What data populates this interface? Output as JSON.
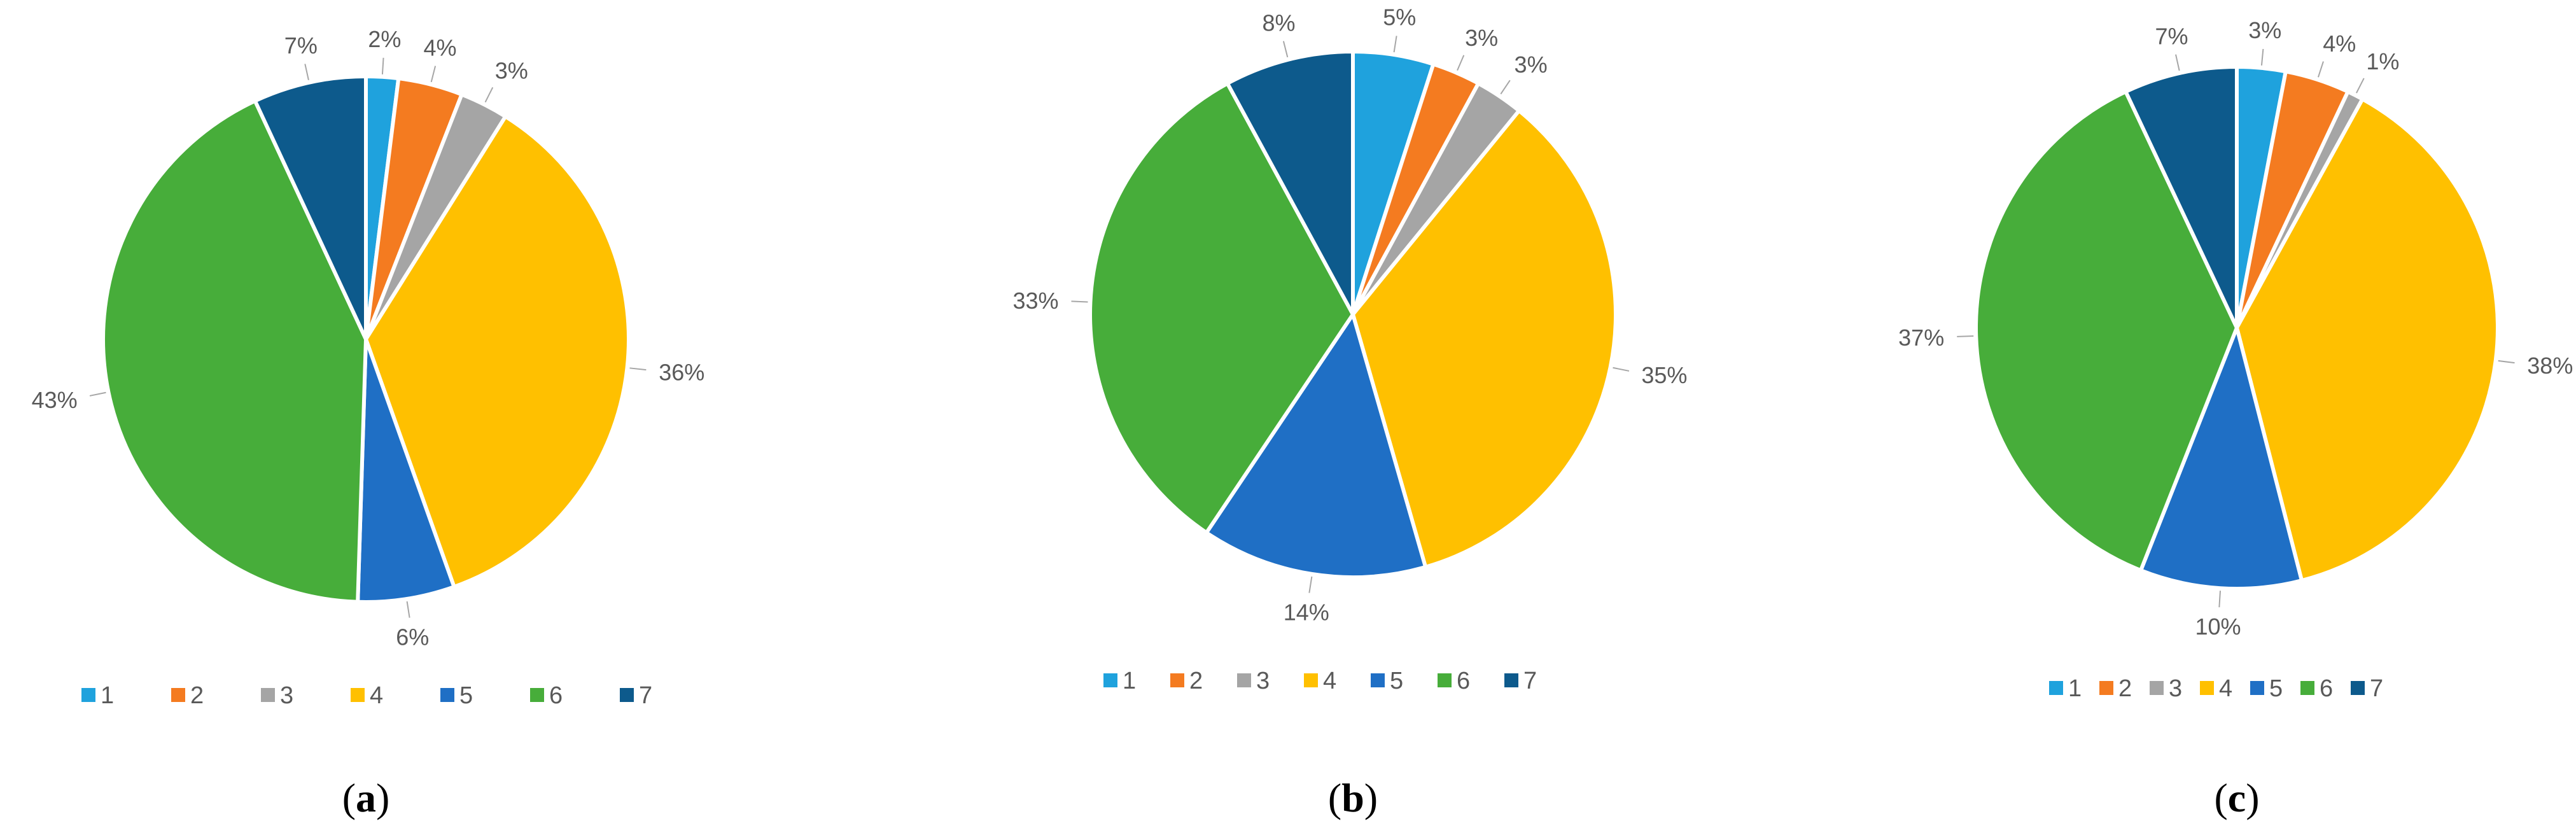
{
  "colors": [
    "#1fa2dd",
    "#f47b20",
    "#a5a5a5",
    "#ffc000",
    "#1f6fc5",
    "#47ad3a",
    "#0d5a8c"
  ],
  "chart_data": [
    {
      "type": "pie",
      "caption": "a",
      "categories": [
        "1",
        "2",
        "3",
        "4",
        "5",
        "6",
        "7"
      ],
      "values": [
        2,
        4,
        3,
        36,
        6,
        43,
        7
      ],
      "labels": [
        "2%",
        "4%",
        "3%",
        "36%",
        "6%",
        "43%",
        "7%"
      ],
      "legend_position": "bottom"
    },
    {
      "type": "pie",
      "caption": "b",
      "categories": [
        "1",
        "2",
        "3",
        "4",
        "5",
        "6",
        "7"
      ],
      "values": [
        5,
        3,
        3,
        35,
        14,
        33,
        8
      ],
      "labels": [
        "5%",
        "3%",
        "3%",
        "35%",
        "14%",
        "33%",
        "8%"
      ],
      "legend_position": "bottom"
    },
    {
      "type": "pie",
      "caption": "c",
      "categories": [
        "1",
        "2",
        "3",
        "4",
        "5",
        "6",
        "7"
      ],
      "values": [
        3,
        4,
        1,
        38,
        10,
        37,
        7
      ],
      "labels": [
        "3%",
        "4%",
        "1%",
        "38%",
        "10%",
        "37%",
        "7%"
      ],
      "legend_position": "bottom"
    }
  ]
}
